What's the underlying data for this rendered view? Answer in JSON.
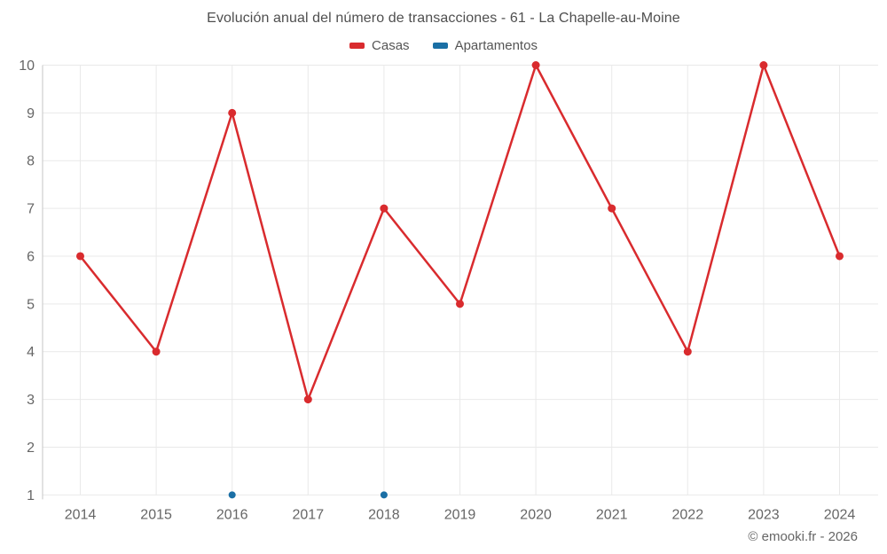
{
  "chart_data": {
    "type": "line",
    "title": "Evolución anual del número de transacciones - 61 - La Chapelle-au-Moine",
    "xlabel": "",
    "ylabel": "",
    "x": [
      2014,
      2015,
      2016,
      2017,
      2018,
      2019,
      2020,
      2021,
      2022,
      2023,
      2024
    ],
    "series": [
      {
        "name": "Casas",
        "color": "#d92b2e",
        "values": [
          6,
          4,
          9,
          3,
          7,
          5,
          10,
          7,
          4,
          10,
          6
        ]
      },
      {
        "name": "Apartamentos",
        "color": "#1a6fa5",
        "values": [
          null,
          null,
          1,
          null,
          1,
          null,
          null,
          null,
          null,
          null,
          null
        ]
      }
    ],
    "ylim": [
      1,
      10
    ],
    "yticks": [
      1,
      2,
      3,
      4,
      5,
      6,
      7,
      8,
      9,
      10
    ],
    "grid": true,
    "legend_position": "top"
  },
  "footer": {
    "credit": "© emooki.fr - 2026"
  },
  "styles": {
    "background": "#ffffff",
    "title_color": "#4f4f4f",
    "tick_color": "#666666",
    "legend_text_color": "#555555",
    "grid_color": "#e9e9e9",
    "axis_color": "#c6c6c6"
  }
}
